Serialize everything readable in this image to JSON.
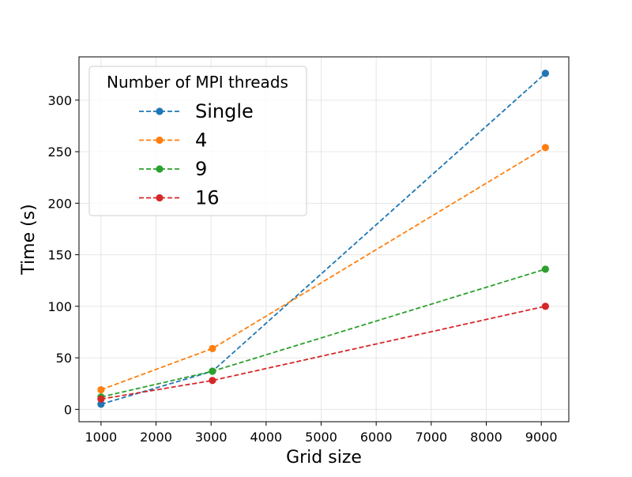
{
  "chart_data": {
    "type": "line",
    "title": "",
    "xlabel": "Grid size",
    "ylabel": "Time (s)",
    "xlim": [
      600,
      9500
    ],
    "ylim": [
      -12,
      342
    ],
    "xticks": [
      1000,
      2000,
      3000,
      4000,
      5000,
      6000,
      7000,
      8000,
      9000
    ],
    "yticks": [
      0,
      50,
      100,
      150,
      200,
      250,
      300
    ],
    "grid": true,
    "legend": {
      "title": "Number of MPI threads",
      "placement": "top-left"
    },
    "x": [
      1000,
      3025,
      9075
    ],
    "series": [
      {
        "name": "Single",
        "color": "#1f77b4",
        "values": [
          5,
          37,
          326
        ]
      },
      {
        "name": "4",
        "color": "#ff7f0e",
        "values": [
          19,
          59,
          254
        ]
      },
      {
        "name": "9",
        "color": "#2ca02c",
        "values": [
          12,
          37,
          136
        ]
      },
      {
        "name": "16",
        "color": "#d62728",
        "values": [
          10,
          28,
          100
        ]
      }
    ]
  }
}
